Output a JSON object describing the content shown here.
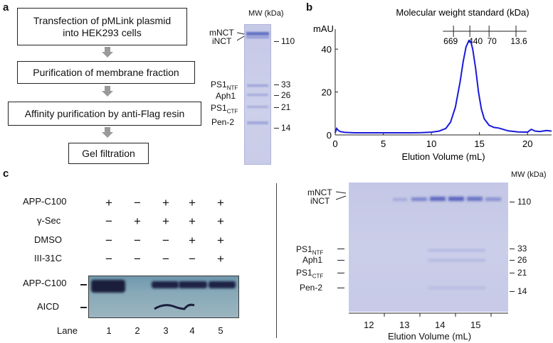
{
  "panel_a": {
    "label": "a",
    "steps": [
      "Transfection of pMLink plasmid into HEK293 cells",
      "Purification of membrane fraction",
      "Affinity purification by anti-Flag resin",
      "Gel filtration"
    ],
    "gel": {
      "mw_header": "MW (kDa)",
      "band_labels": [
        {
          "main": "mNCT",
          "sub": ""
        },
        {
          "main": "iNCT",
          "sub": ""
        },
        {
          "main": "PS1",
          "sub": "NTF"
        },
        {
          "main": "Aph1",
          "sub": ""
        },
        {
          "main": "PS1",
          "sub": "CTF"
        },
        {
          "main": "Pen-2",
          "sub": ""
        }
      ],
      "mw_markers": [
        "110",
        "33",
        "26",
        "21",
        "14"
      ]
    }
  },
  "panel_b": {
    "label": "b",
    "top_title": "Molecular weight standard (kDa)",
    "standards": [
      {
        "label": "669",
        "x": 12.3
      },
      {
        "label": "440",
        "x": 14.0
      },
      {
        "label": "70",
        "x": 16.0
      },
      {
        "label": "13.6",
        "x": 18.8
      }
    ],
    "chart_data": {
      "type": "line",
      "xlabel": "Elution Volume (mL)",
      "ylabel": "mAU",
      "xlim": [
        0,
        22.5
      ],
      "ylim": [
        0,
        48
      ],
      "xticks": [
        0,
        5,
        10,
        15,
        20
      ],
      "yticks": [
        0,
        20,
        40
      ],
      "series": [
        {
          "color": "#1a1adc",
          "x": [
            0,
            0.15,
            0.3,
            0.5,
            1,
            2,
            4,
            6,
            8,
            9,
            10,
            10.8,
            11.5,
            12,
            12.5,
            13,
            13.3,
            13.6,
            13.9,
            14.1,
            14.3,
            14.6,
            14.9,
            15.2,
            15.5,
            16,
            16.5,
            17,
            18,
            19,
            20,
            20.4,
            20.8,
            21.3,
            22,
            22.5
          ],
          "y": [
            1.0,
            3.0,
            2.2,
            1.6,
            1.2,
            1.0,
            1.0,
            1.0,
            1.0,
            1.1,
            1.3,
            1.8,
            3.0,
            6.0,
            13.0,
            25.0,
            34.0,
            41.0,
            44.0,
            43.5,
            40.0,
            31.0,
            20.0,
            12.0,
            7.5,
            4.5,
            3.5,
            3.2,
            1.9,
            1.4,
            1.3,
            2.6,
            1.8,
            1.6,
            2.1,
            1.8
          ]
        }
      ]
    }
  },
  "panel_c": {
    "label": "c",
    "rows": [
      {
        "label": "APP-C100",
        "values": [
          "+",
          "−",
          "+",
          "+",
          "+"
        ]
      },
      {
        "label": "γ-Sec",
        "values": [
          "−",
          "+",
          "+",
          "+",
          "+"
        ]
      },
      {
        "label": "DMSO",
        "values": [
          "−",
          "−",
          "−",
          "+",
          "+"
        ]
      },
      {
        "label": "III-31C",
        "values": [
          "−",
          "−",
          "−",
          "−",
          "+"
        ]
      }
    ],
    "blot_labels": [
      "APP-C100",
      "AICD"
    ],
    "lane_title": "Lane",
    "lanes": [
      "1",
      "2",
      "3",
      "4",
      "5"
    ],
    "sds_gel": {
      "mw_header": "MW (kDa)",
      "band_labels": [
        {
          "main": "mNCT",
          "sub": ""
        },
        {
          "main": "iNCT",
          "sub": ""
        },
        {
          "main": "PS1",
          "sub": "NTF"
        },
        {
          "main": "Aph1",
          "sub": ""
        },
        {
          "main": "PS1",
          "sub": "CTF"
        },
        {
          "main": "Pen-2",
          "sub": ""
        }
      ],
      "mw_markers": [
        "110",
        "33",
        "26",
        "21",
        "14"
      ],
      "fractions": [
        "12",
        "13",
        "14",
        "15"
      ],
      "xlabel": "Elution Volume (mL)"
    }
  }
}
